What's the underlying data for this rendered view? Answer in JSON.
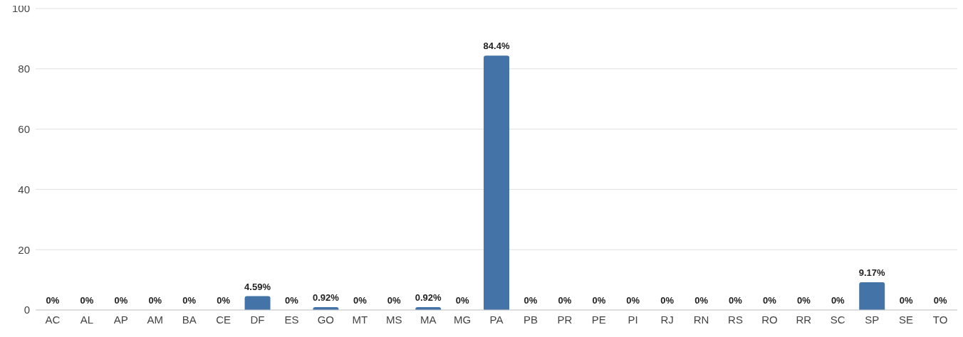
{
  "chart_data": {
    "type": "bar",
    "categories": [
      "AC",
      "AL",
      "AP",
      "AM",
      "BA",
      "CE",
      "DF",
      "ES",
      "GO",
      "MT",
      "MS",
      "MA",
      "MG",
      "PA",
      "PB",
      "PR",
      "PE",
      "PI",
      "RJ",
      "RN",
      "RS",
      "RO",
      "RR",
      "SC",
      "SP",
      "SE",
      "TO"
    ],
    "values": [
      0,
      0,
      0,
      0,
      0,
      0,
      4.59,
      0,
      0.92,
      0,
      0,
      0.92,
      0,
      84.4,
      0,
      0,
      0,
      0,
      0,
      0,
      0,
      0,
      0,
      0,
      9.17,
      0,
      0
    ],
    "value_labels": [
      "0%",
      "0%",
      "0%",
      "0%",
      "0%",
      "0%",
      "4.59%",
      "0%",
      "0.92%",
      "0%",
      "0%",
      "0.92%",
      "0%",
      "84.4%",
      "0%",
      "0%",
      "0%",
      "0%",
      "0%",
      "0%",
      "0%",
      "0%",
      "0%",
      "0%",
      "9.17%",
      "0%",
      "0%"
    ],
    "color": "#4473a8",
    "ylim": [
      0,
      100
    ],
    "yticks": [
      0,
      20,
      40,
      60,
      80,
      100
    ],
    "grid": "y",
    "legend": false
  }
}
